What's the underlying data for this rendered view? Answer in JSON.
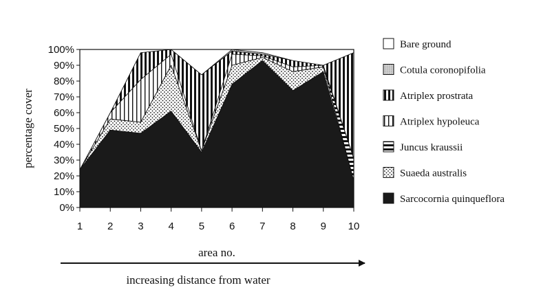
{
  "chart_data": {
    "type": "area",
    "stacked": true,
    "percent": true,
    "title": "",
    "xlabel": "area no.",
    "ylabel": "percentage cover",
    "annotation": "increasing distance from water",
    "x": [
      1,
      2,
      3,
      4,
      5,
      6,
      7,
      8,
      9,
      10
    ],
    "ylim": [
      0,
      100
    ],
    "yticks": [
      "0%",
      "10%",
      "20%",
      "30%",
      "40%",
      "50%",
      "60%",
      "70%",
      "80%",
      "90%",
      "100%"
    ],
    "grid": false,
    "legend_position": "right",
    "series": [
      {
        "name": "Sarcocornia quinqueflora",
        "values": [
          24,
          49,
          47,
          61,
          35,
          78,
          93,
          74,
          86,
          17
        ]
      },
      {
        "name": "Suaeda australis",
        "values": [
          0,
          7,
          7,
          29,
          1,
          12,
          2,
          12,
          3,
          0
        ]
      },
      {
        "name": "Juncus kraussii",
        "values": [
          0,
          0,
          0,
          0,
          0,
          0,
          0,
          0,
          0,
          14
        ]
      },
      {
        "name": "Atriplex hypoleuca",
        "values": [
          0,
          4,
          27,
          7,
          0,
          7,
          1,
          3,
          1,
          0
        ]
      },
      {
        "name": "Atriplex prostrata",
        "values": [
          0,
          0,
          17,
          3,
          48,
          2,
          1,
          4,
          0,
          67
        ]
      },
      {
        "name": "Cotula coronopifolia",
        "values": [
          0,
          0,
          0,
          0,
          0,
          1,
          1,
          0,
          0,
          0
        ]
      },
      {
        "name": "Bare ground",
        "values": [
          76,
          40,
          2,
          0,
          16,
          0,
          2,
          7,
          10,
          2
        ]
      }
    ],
    "legend_order": [
      "Bare ground",
      "Cotula coronopifolia",
      "Atriplex prostrata",
      "Atriplex hypoleuca",
      "Juncus kraussii",
      "Suaeda australis",
      "Sarcocornia quinqueflora"
    ],
    "fills": {
      "Sarcocornia quinqueflora": "solid-black",
      "Suaeda australis": "dots",
      "Juncus kraussii": "horizontal-stripes",
      "Atriplex hypoleuca": "thin-vertical-stripes",
      "Atriplex prostrata": "thick-vertical-stripes",
      "Cotula coronopifolia": "light-grey-dots",
      "Bare ground": "white"
    }
  }
}
